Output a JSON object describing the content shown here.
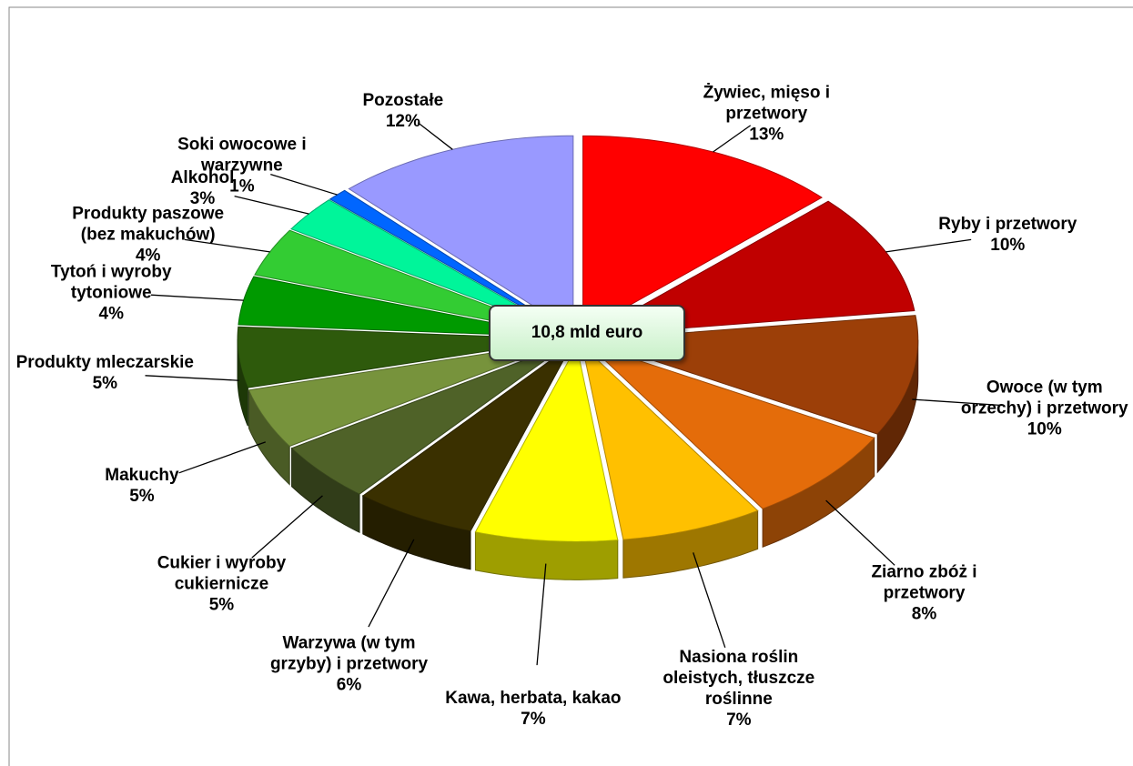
{
  "chart_data": {
    "type": "pie",
    "annotation": "10,8 mld euro",
    "categories": [
      "Żywiec, mięso i przetwory",
      "Ryby i przetwory",
      "Owoce (w tym orzechy) i przetwory",
      "Ziarno zbóż i przetwory",
      "Nasiona roślin oleistych, tłuszcze roślinne",
      "Kawa, herbata, kakao",
      "Warzywa (w tym grzyby) i przetwory",
      "Cukier i wyroby cukiernicze",
      "Makuchy",
      "Produkty mleczarskie",
      "Tytoń i wyroby tytoniowe",
      "Produkty paszowe (bez makuchów)",
      "Alkohol",
      "Soki owocowe i warzywne",
      "Pozostałe"
    ],
    "values": [
      13,
      10,
      10,
      8,
      7,
      7,
      6,
      5,
      5,
      5,
      4,
      4,
      3,
      1,
      12
    ],
    "value_labels": [
      "13%",
      "10%",
      "10%",
      "8%",
      "7%",
      "7%",
      "6%",
      "5%",
      "5%",
      "5%",
      "4%",
      "4%",
      "3%",
      "1%",
      "12%"
    ],
    "colors": [
      "#ff0000",
      "#c00000",
      "#9c3f08",
      "#e46c0a",
      "#ffc000",
      "#ffff00",
      "#3a3000",
      "#4f6228",
      "#77933c",
      "#2e5a0c",
      "#009a00",
      "#33cc33",
      "#00f59a",
      "#0066ff",
      "#9999ff"
    ]
  }
}
